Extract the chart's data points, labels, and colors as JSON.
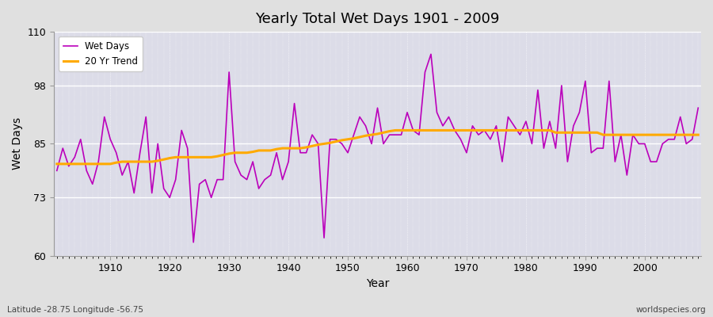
{
  "title": "Yearly Total Wet Days 1901 - 2009",
  "xlabel": "Year",
  "ylabel": "Wet Days",
  "lat_lon_label": "Latitude -28.75 Longitude -56.75",
  "source_label": "worldspecies.org",
  "ylim": [
    60,
    110
  ],
  "yticks": [
    60,
    73,
    85,
    98,
    110
  ],
  "line_color": "#bb00bb",
  "trend_color": "#ffaa00",
  "fig_bg_color": "#e0e0e0",
  "plot_bg_color": "#dcdce8",
  "legend_labels": [
    "Wet Days",
    "20 Yr Trend"
  ],
  "years": [
    1901,
    1902,
    1903,
    1904,
    1905,
    1906,
    1907,
    1908,
    1909,
    1910,
    1911,
    1912,
    1913,
    1914,
    1915,
    1916,
    1917,
    1918,
    1919,
    1920,
    1921,
    1922,
    1923,
    1924,
    1925,
    1926,
    1927,
    1928,
    1929,
    1930,
    1931,
    1932,
    1933,
    1934,
    1935,
    1936,
    1937,
    1938,
    1939,
    1940,
    1941,
    1942,
    1943,
    1944,
    1945,
    1946,
    1947,
    1948,
    1949,
    1950,
    1951,
    1952,
    1953,
    1954,
    1955,
    1956,
    1957,
    1958,
    1959,
    1960,
    1961,
    1962,
    1963,
    1964,
    1965,
    1966,
    1967,
    1968,
    1969,
    1970,
    1971,
    1972,
    1973,
    1974,
    1975,
    1976,
    1977,
    1978,
    1979,
    1980,
    1981,
    1982,
    1983,
    1984,
    1985,
    1986,
    1987,
    1988,
    1989,
    1990,
    1991,
    1992,
    1993,
    1994,
    1995,
    1996,
    1997,
    1998,
    1999,
    2000,
    2001,
    2002,
    2003,
    2004,
    2005,
    2006,
    2007,
    2008,
    2009
  ],
  "wet_days": [
    79,
    84,
    80,
    82,
    86,
    79,
    76,
    81,
    91,
    86,
    83,
    78,
    81,
    74,
    83,
    91,
    74,
    85,
    75,
    73,
    77,
    88,
    84,
    63,
    76,
    77,
    73,
    77,
    77,
    101,
    81,
    78,
    77,
    81,
    75,
    77,
    78,
    83,
    77,
    81,
    94,
    83,
    83,
    87,
    85,
    64,
    86,
    86,
    85,
    83,
    87,
    91,
    89,
    85,
    93,
    85,
    87,
    87,
    87,
    92,
    88,
    87,
    101,
    105,
    92,
    89,
    91,
    88,
    86,
    83,
    89,
    87,
    88,
    86,
    89,
    81,
    91,
    89,
    87,
    90,
    85,
    97,
    84,
    90,
    84,
    98,
    81,
    89,
    92,
    99,
    83,
    84,
    84,
    99,
    81,
    87,
    78,
    87,
    85,
    85,
    81,
    81,
    85,
    86,
    86,
    91,
    85,
    86,
    93
  ],
  "trend": [
    80.5,
    80.5,
    80.5,
    80.5,
    80.5,
    80.5,
    80.5,
    80.5,
    80.5,
    80.5,
    80.8,
    81.0,
    81.0,
    81.0,
    81.0,
    81.0,
    81.0,
    81.2,
    81.5,
    81.8,
    82.0,
    82.0,
    82.0,
    82.0,
    82.0,
    82.0,
    82.0,
    82.2,
    82.5,
    82.8,
    83.0,
    83.0,
    83.0,
    83.2,
    83.5,
    83.5,
    83.5,
    83.8,
    84.0,
    84.0,
    84.0,
    84.0,
    84.2,
    84.5,
    84.8,
    85.0,
    85.2,
    85.5,
    85.8,
    86.0,
    86.2,
    86.5,
    86.8,
    87.0,
    87.2,
    87.5,
    87.8,
    88.0,
    88.0,
    88.0,
    88.0,
    88.0,
    88.0,
    88.0,
    88.0,
    88.0,
    88.0,
    88.0,
    88.0,
    88.0,
    88.0,
    88.0,
    88.0,
    88.0,
    88.0,
    88.0,
    88.0,
    88.0,
    88.0,
    88.0,
    88.0,
    88.0,
    88.0,
    88.0,
    87.5,
    87.5,
    87.5,
    87.5,
    87.5,
    87.5,
    87.5,
    87.5,
    87.0,
    87.0,
    87.0,
    87.0,
    87.0,
    87.0,
    87.0,
    87.0,
    87.0,
    87.0,
    87.0,
    87.0,
    87.0,
    87.0,
    87.0,
    87.0,
    87.0
  ]
}
